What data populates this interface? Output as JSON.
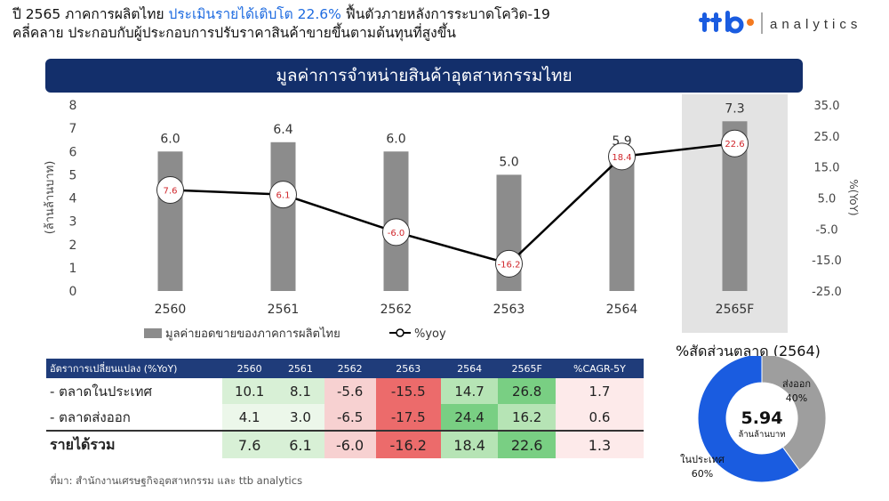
{
  "header": {
    "line1_pre": "ปี 2565 ภาคการผลิตไทย ",
    "line1_highlight": "ประเมินรายได้เติบโต 22.6%",
    "line1_post": " ฟื้นตัวภายหลังการระบาดโควิด-19",
    "line2": "คลี่คลาย ประกอบกับผู้ประกอบการปรับราคาสินค้าขายขึ้นตามต้นทุนที่สูงขึ้น"
  },
  "logo": {
    "brand": "ttb",
    "word": "analytics"
  },
  "banner_title": "มูลค่าการจำหน่ายสินค้าอุตสาหกรรมไทย",
  "chart_data": {
    "type": "bar",
    "categories": [
      "2560",
      "2561",
      "2562",
      "2563",
      "2564",
      "2565F"
    ],
    "ylabel": "(ล้านล้านบาท)",
    "ylabel_right": "%(YoY)",
    "ylim": [
      0,
      8
    ],
    "ylim_right": [
      -25,
      35
    ],
    "y_ticks": [
      "0",
      "1",
      "2",
      "3",
      "4",
      "5",
      "6",
      "7",
      "8"
    ],
    "y_ticks_right": [
      "-25.0",
      "-15.0",
      "-5.0",
      "5.0",
      "15.0",
      "25.0",
      "35.0"
    ],
    "highlight_category": "2565F",
    "series": [
      {
        "name": "มูลค่ายอดขายของภาคการผลิตไทย",
        "kind": "bar",
        "color": "#8c8c8c",
        "values": [
          6.0,
          6.4,
          6.0,
          5.0,
          5.9,
          7.3
        ],
        "labels": [
          "6.0",
          "6.4",
          "6.0",
          "5.0",
          "5.9",
          "7.3"
        ]
      },
      {
        "name": "%yoy",
        "kind": "line",
        "axis": "right",
        "color": "#000000",
        "values": [
          7.6,
          6.1,
          -6.0,
          -16.2,
          18.4,
          22.6
        ],
        "labels": [
          "7.6",
          "6.1",
          "-6.0",
          "-16.2",
          "18.4",
          "22.6"
        ]
      }
    ]
  },
  "table": {
    "headers": [
      "อัตราการเปลี่ยนแปลง (%YoY)",
      "2560",
      "2561",
      "2562",
      "2563",
      "2564",
      "2565F",
      "%CAGR-5Y"
    ],
    "rows": [
      {
        "label": "- ตลาดในประเทศ",
        "values": [
          "10.1",
          "8.1",
          "-5.6",
          "-15.5",
          "14.7",
          "26.8",
          "1.7"
        ]
      },
      {
        "label": "- ตลาดส่งออก",
        "values": [
          "4.1",
          "3.0",
          "-6.5",
          "-17.5",
          "24.4",
          "16.2",
          "0.6"
        ]
      },
      {
        "label": "รายได้รวม",
        "values": [
          "7.6",
          "6.1",
          "-6.0",
          "-16.2",
          "18.4",
          "22.6",
          "1.3"
        ]
      }
    ]
  },
  "source": "ที่มา: สำนักงานเศรษฐกิจอุตสาหกรรม และ ttb analytics",
  "donut": {
    "title": "%สัดส่วนตลาด (2564)",
    "center_value": "5.94",
    "center_unit": "ล้านล้านบาท",
    "segments": [
      {
        "name": "ในประเทศ",
        "pct_label": "60%",
        "value": 60,
        "color": "#1a5ce0"
      },
      {
        "name": "ส่งออก",
        "pct_label": "40%",
        "value": 40,
        "color": "#9e9e9e"
      }
    ]
  }
}
